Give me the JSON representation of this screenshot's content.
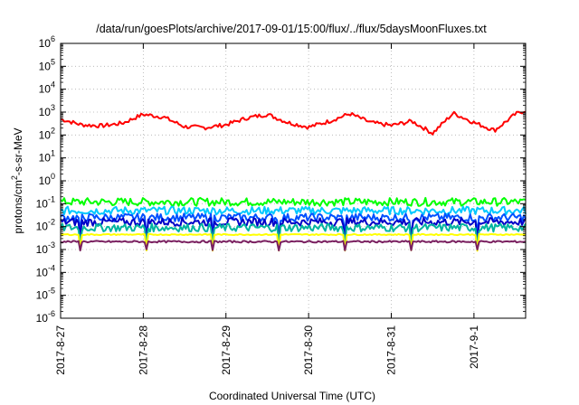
{
  "chart_data": {
    "type": "line",
    "title": "/data/run/goesPlots/archive/2017-09-01/15:00/flux/../flux/5daysMoonFluxes.txt",
    "xlabel": "Coordinated Universal Time (UTC)",
    "ylabel_parts": {
      "pre": "protons/cm",
      "sup": "2",
      "post": "-s-sr-MeV"
    },
    "y_scale": "log",
    "ylim_exp": [
      -6,
      6
    ],
    "xlim_days": [
      "2017-08-27",
      "2017-09-01 15:00"
    ],
    "grid": true,
    "x_ticks": [
      "2017-8-27",
      "2017-8-28",
      "2017-8-29",
      "2017-8-30",
      "2017-8-31",
      "2017-9-1"
    ],
    "y_ticks": [
      {
        "base": "10",
        "exp": "-6"
      },
      {
        "base": "10",
        "exp": "-5"
      },
      {
        "base": "10",
        "exp": "-4"
      },
      {
        "base": "10",
        "exp": "-3"
      },
      {
        "base": "10",
        "exp": "-2"
      },
      {
        "base": "10",
        "exp": "-1"
      },
      {
        "base": "10",
        "exp": "0"
      },
      {
        "base": "10",
        "exp": "1"
      },
      {
        "base": "10",
        "exp": "2"
      },
      {
        "base": "10",
        "exp": "3"
      },
      {
        "base": "10",
        "exp": "4"
      },
      {
        "base": "10",
        "exp": "5"
      },
      {
        "base": "10",
        "exp": "6"
      }
    ],
    "series": [
      {
        "color": "#ff0000",
        "x": [
          "8-27 00:00",
          "8-27 06:00",
          "8-27 12:00",
          "8-27 18:00",
          "8-28 00:00",
          "8-28 06:00",
          "8-28 12:00",
          "8-28 18:00",
          "8-29 00:00",
          "8-29 06:00",
          "8-29 12:00",
          "8-29 18:00",
          "8-30 00:00",
          "8-30 06:00",
          "8-30 12:00",
          "8-30 18:00",
          "8-31 00:00",
          "8-31 06:00",
          "8-31 12:00",
          "8-31 18:00",
          "9-1 00:00",
          "9-1 06:00",
          "9-1 12:00",
          "9-1 15:00"
        ],
        "y": [
          500,
          280,
          250,
          330,
          800,
          600,
          230,
          210,
          280,
          550,
          800,
          350,
          220,
          400,
          850,
          350,
          260,
          400,
          120,
          900,
          350,
          160,
          800,
          1200
        ]
      },
      {
        "color": "#00ff00",
        "y_level": 0.12
      },
      {
        "color": "#00c8ff",
        "y_level": 0.05
      },
      {
        "color": "#0050ff",
        "y_level": 0.025
      },
      {
        "color": "#0000c8",
        "y_level": 0.016
      },
      {
        "color": "#00b4a0",
        "y_level": 0.009
      },
      {
        "color": "#ffff00",
        "y_level": 0.0045
      },
      {
        "color": "#7a2060",
        "y_level": 0.0022
      }
    ]
  }
}
